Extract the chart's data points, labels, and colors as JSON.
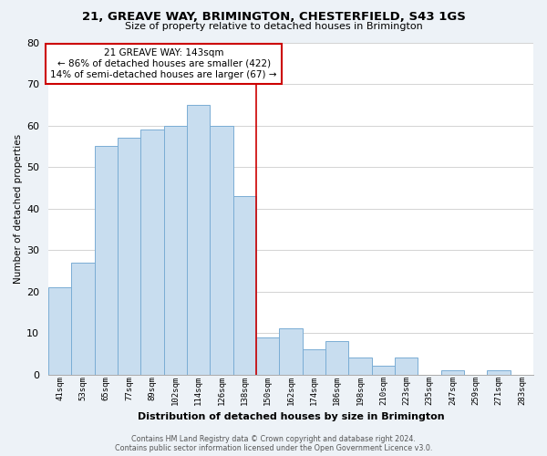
{
  "title": "21, GREAVE WAY, BRIMINGTON, CHESTERFIELD, S43 1GS",
  "subtitle": "Size of property relative to detached houses in Brimington",
  "xlabel": "Distribution of detached houses by size in Brimington",
  "ylabel": "Number of detached properties",
  "bar_labels": [
    "41sqm",
    "53sqm",
    "65sqm",
    "77sqm",
    "89sqm",
    "102sqm",
    "114sqm",
    "126sqm",
    "138sqm",
    "150sqm",
    "162sqm",
    "174sqm",
    "186sqm",
    "198sqm",
    "210sqm",
    "223sqm",
    "235sqm",
    "247sqm",
    "259sqm",
    "271sqm",
    "283sqm"
  ],
  "bar_values": [
    21,
    27,
    55,
    57,
    59,
    60,
    65,
    60,
    43,
    9,
    11,
    6,
    8,
    4,
    2,
    4,
    0,
    1,
    0,
    1,
    0
  ],
  "bar_color": "#c8ddef",
  "bar_edge_color": "#7aadd4",
  "ylim": [
    0,
    80
  ],
  "yticks": [
    0,
    10,
    20,
    30,
    40,
    50,
    60,
    70,
    80
  ],
  "ann_line1": "21 GREAVE WAY: 143sqm",
  "ann_line2": "← 86% of detached houses are smaller (422)",
  "ann_line3": "14% of semi-detached houses are larger (67) →",
  "red_line_x": 8.5,
  "footer_line1": "Contains HM Land Registry data © Crown copyright and database right 2024.",
  "footer_line2": "Contains public sector information licensed under the Open Government Licence v3.0.",
  "background_color": "#edf2f7",
  "plot_background_color": "#ffffff"
}
